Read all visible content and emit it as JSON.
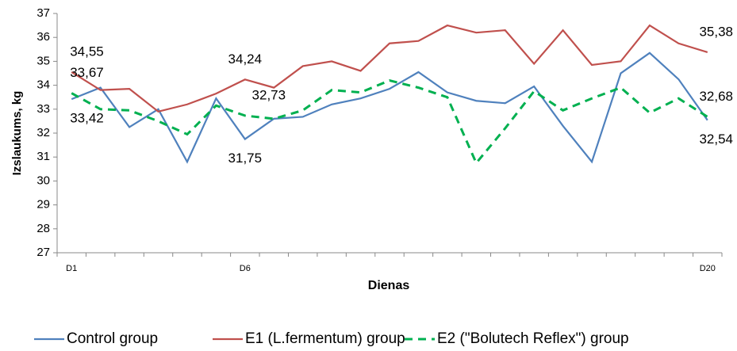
{
  "chart_data": {
    "type": "line",
    "y_label": "Izslaukums, kg",
    "x_label": "Dienas",
    "categories": [
      "D1",
      null,
      null,
      null,
      null,
      null,
      "D6",
      null,
      null,
      null,
      null,
      null,
      null,
      null,
      null,
      null,
      null,
      null,
      null,
      null,
      null,
      null,
      "D20"
    ],
    "series": [
      {
        "name": "Control group",
        "color": "#4f81bd",
        "dash": false,
        "values": [
          33.42,
          33.9,
          32.25,
          33.0,
          30.8,
          33.45,
          31.75,
          32.6,
          32.68,
          33.2,
          33.45,
          33.85,
          34.55,
          33.7,
          33.35,
          33.25,
          33.95,
          32.3,
          30.8,
          34.5,
          35.35,
          34.25,
          32.54
        ],
        "value_labels": [
          "33,42",
          null,
          null,
          null,
          null,
          null,
          "31,75",
          null,
          null,
          null,
          null,
          null,
          null,
          null,
          null,
          null,
          null,
          null,
          null,
          null,
          null,
          null,
          "32,54"
        ]
      },
      {
        "name": "E1 (L.fermentum) group",
        "color": "#c0504d",
        "dash": false,
        "values": [
          34.55,
          33.8,
          33.85,
          32.9,
          33.2,
          33.65,
          34.24,
          33.9,
          34.8,
          35.0,
          34.6,
          35.75,
          35.85,
          36.5,
          36.2,
          36.3,
          34.9,
          36.3,
          34.85,
          35.0,
          36.5,
          35.75,
          35.38
        ],
        "value_labels": [
          "34,55",
          null,
          null,
          null,
          null,
          null,
          "34,24",
          null,
          null,
          null,
          null,
          null,
          null,
          null,
          null,
          null,
          null,
          null,
          null,
          null,
          null,
          null,
          "35,38"
        ]
      },
      {
        "name": "E2 (\"Bolutech Reflex\") group",
        "color": "#00b050",
        "dash": true,
        "values": [
          33.67,
          33.0,
          32.95,
          32.5,
          31.95,
          33.15,
          32.73,
          32.6,
          32.95,
          33.8,
          33.7,
          34.2,
          33.9,
          33.5,
          30.75,
          32.2,
          33.75,
          32.95,
          33.45,
          33.9,
          32.85,
          33.45,
          32.68
        ],
        "value_labels": [
          "33,67",
          null,
          null,
          null,
          null,
          null,
          "32,73",
          null,
          null,
          null,
          null,
          null,
          null,
          null,
          null,
          null,
          null,
          null,
          null,
          null,
          null,
          null,
          "32,68"
        ]
      }
    ],
    "ylim": [
      27,
      37
    ],
    "yticks": [
      27,
      28,
      29,
      30,
      31,
      32,
      33,
      34,
      35,
      36,
      37
    ],
    "legend": "bottom"
  }
}
